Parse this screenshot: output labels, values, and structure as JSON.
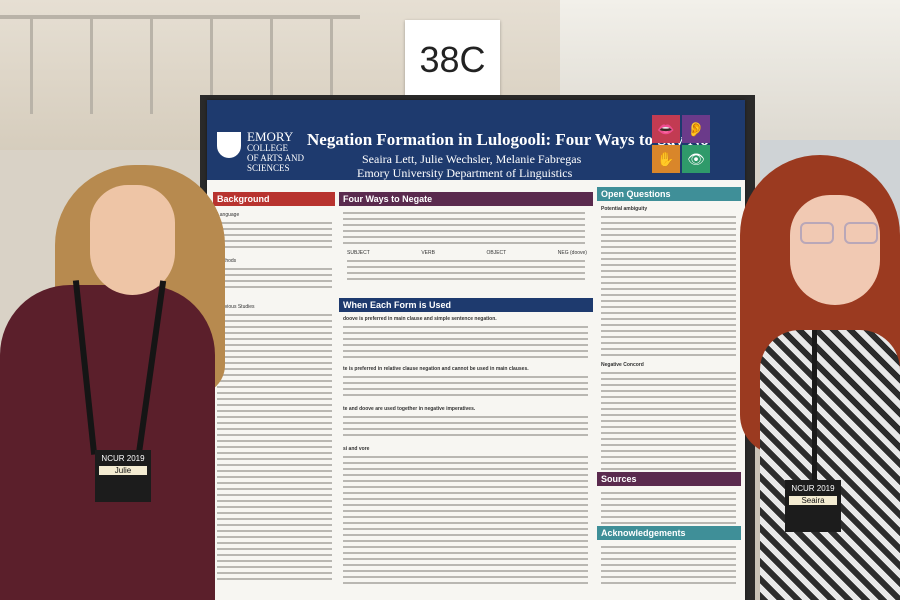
{
  "scene": {
    "sign_label": "38C"
  },
  "poster": {
    "college_logo": {
      "line1": "EMORY",
      "line2": "COLLEGE",
      "line3": "OF ARTS AND",
      "line4": "SCIENCES"
    },
    "title": "Negation Formation in Lulogooli: Four Ways to Say No",
    "authors": "Seaira Lett, Julie Wechsler, Melanie Fabregas",
    "department": "Emory University Department of Linguistics",
    "sections": {
      "background": "Background",
      "four_ways": "Four Ways to Negate",
      "when_used": "When Each Form is Used",
      "open_questions": "Open Questions",
      "sources": "Sources",
      "acknowledgements": "Acknowledgements"
    },
    "background_items": [
      "Language",
      "Methods",
      "Previous Studies"
    ],
    "open_question_items": [
      "Potential ambiguity",
      "Negative Concord"
    ],
    "when_used_items": [
      "doove is preferred in main clause and simple sentence negation.",
      "te is preferred in relative clause negation and cannot be used in main clauses.",
      "te and doove are used together in negative imperatives.",
      "si and vore"
    ],
    "table_headers": [
      "SUBJECT",
      "VERB",
      "OBJECT",
      "NEG (doove)"
    ]
  },
  "people": {
    "left_badge": {
      "event": "NCUR 2019",
      "name": "Julie"
    },
    "right_badge": {
      "event": "NCUR 2019",
      "name": "Seaira"
    }
  }
}
